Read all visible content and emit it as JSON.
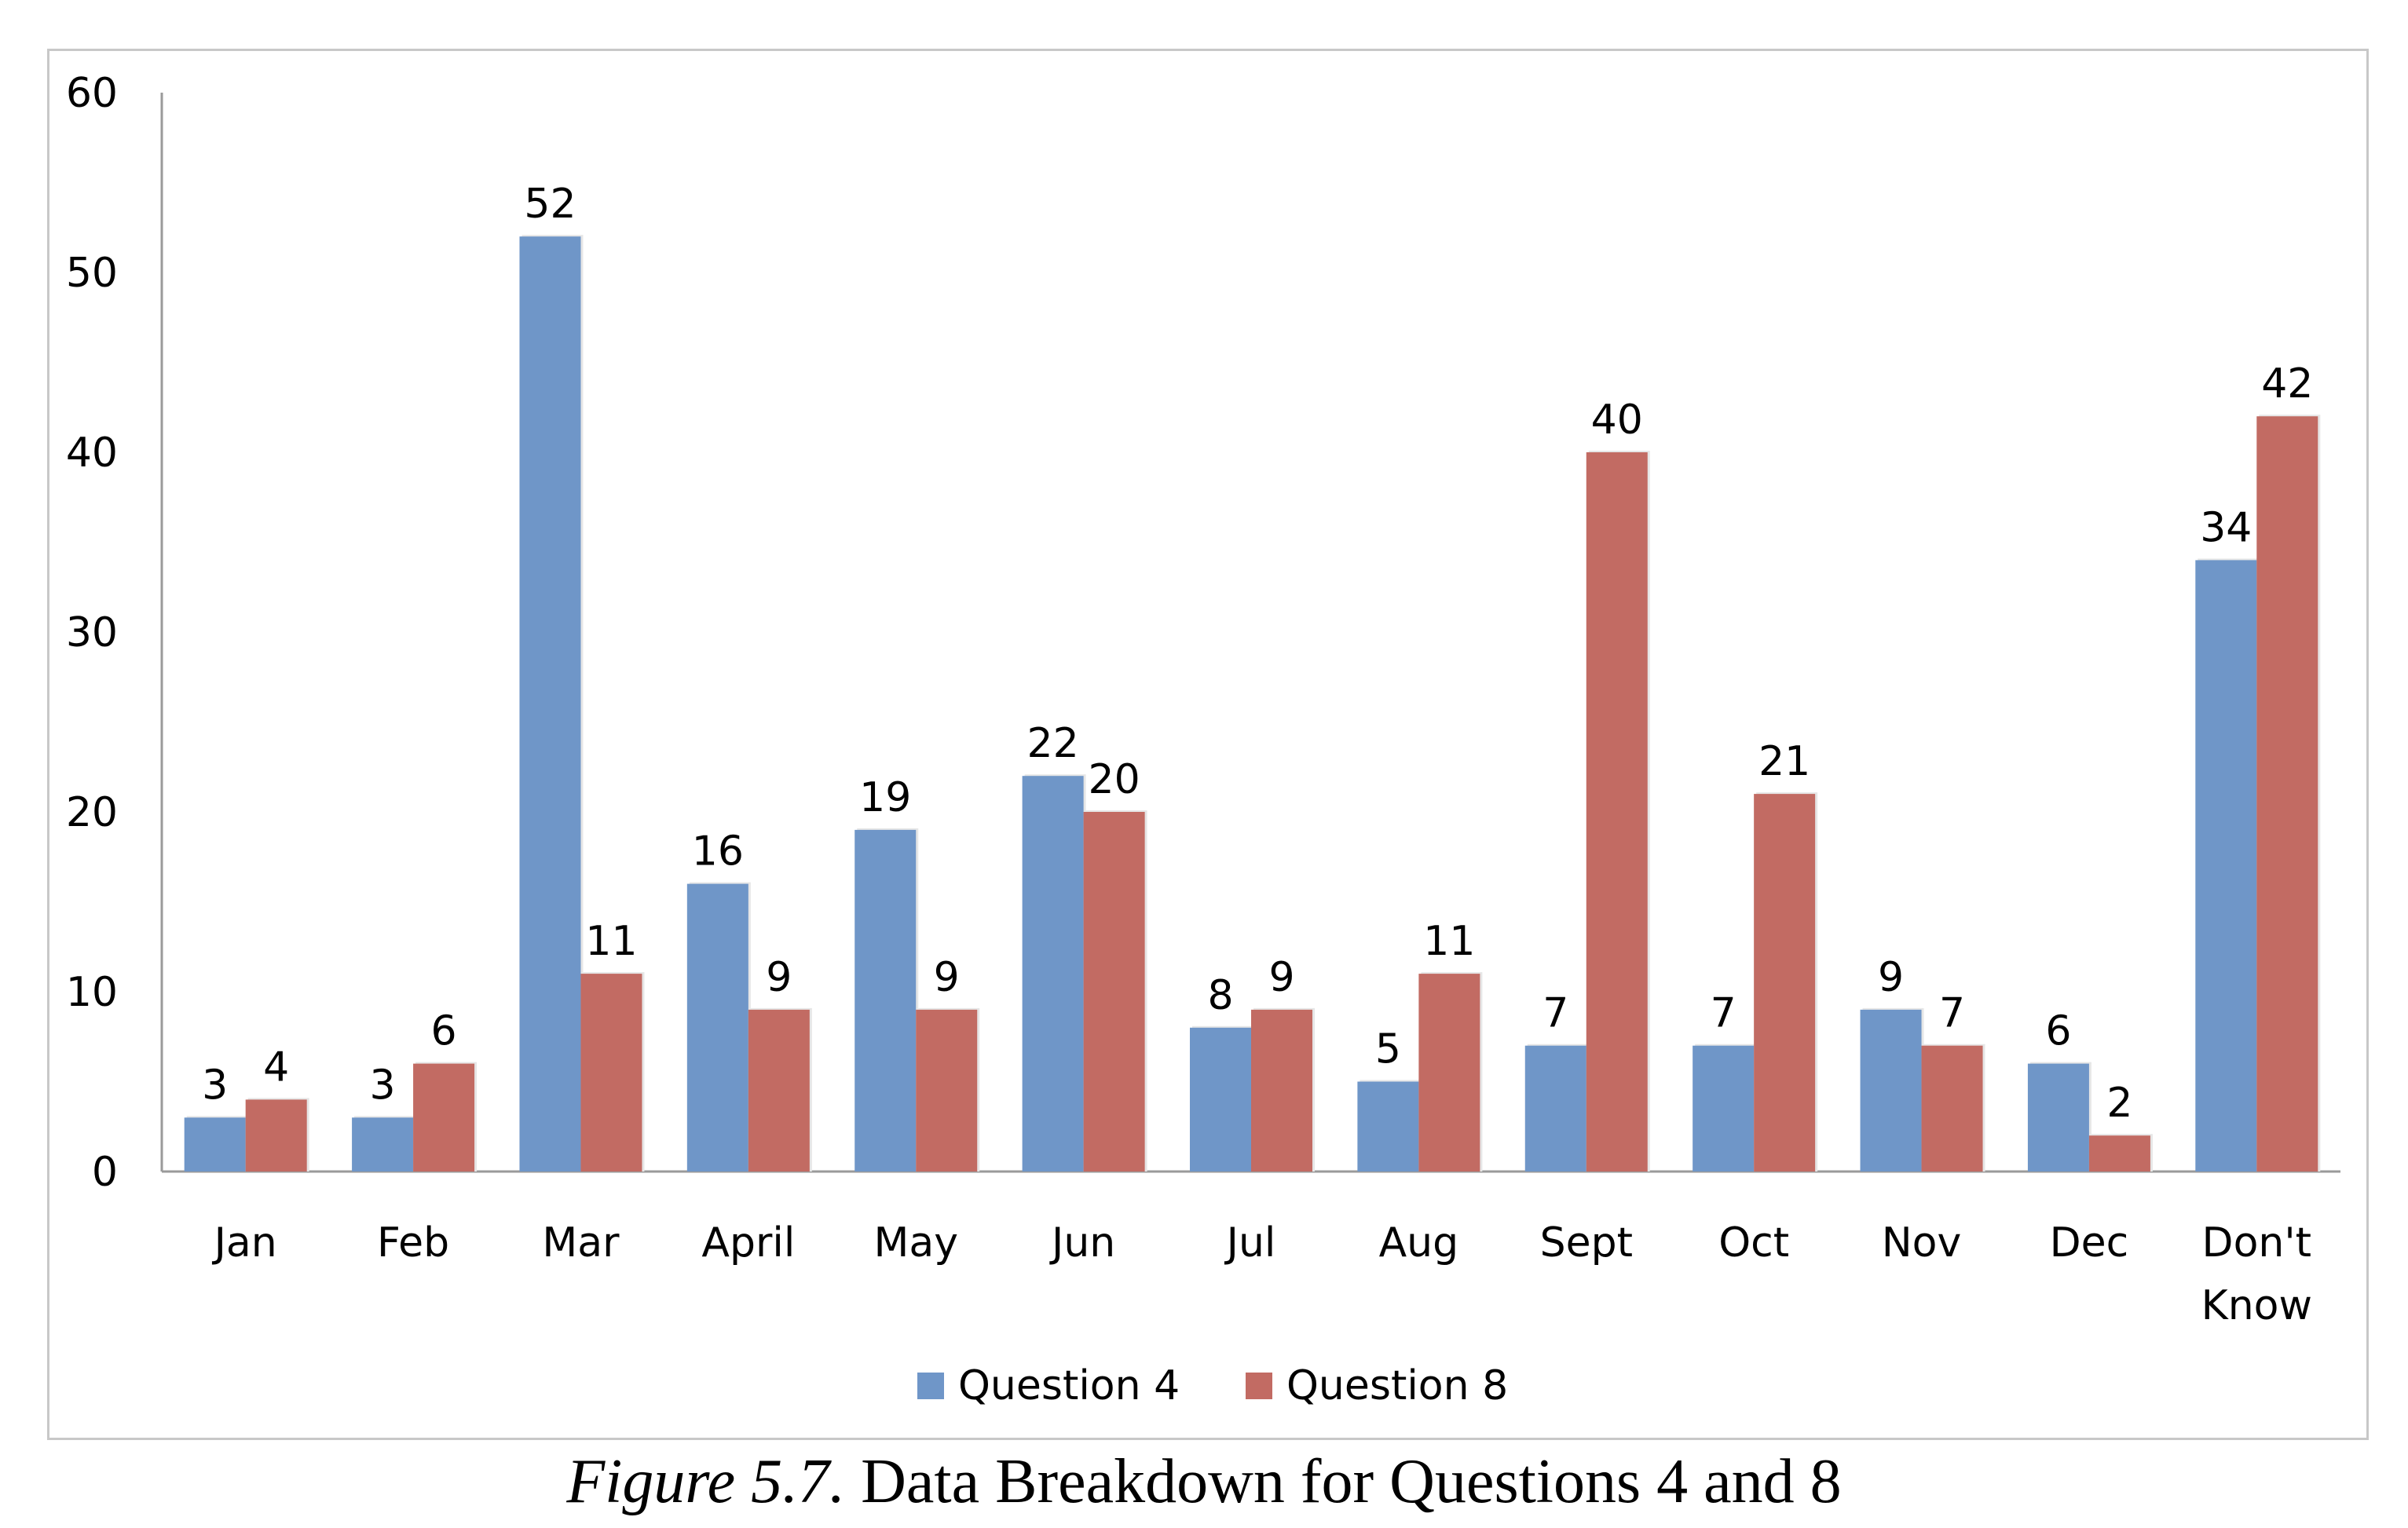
{
  "chart_data": {
    "type": "bar",
    "categories": [
      "Jan",
      "Feb",
      "Mar",
      "April",
      "May",
      "Jun",
      "Jul",
      "Aug",
      "Sept",
      "Oct",
      "Nov",
      "Dec",
      "Don't Know"
    ],
    "series": [
      {
        "name": "Question 4",
        "color": "#6f96c8",
        "values": [
          3,
          3,
          52,
          16,
          19,
          22,
          8,
          5,
          7,
          7,
          9,
          6,
          34
        ]
      },
      {
        "name": "Question 8",
        "color": "#c26b63",
        "values": [
          4,
          6,
          11,
          9,
          9,
          20,
          9,
          11,
          40,
          21,
          7,
          2,
          42
        ]
      }
    ],
    "ylim": [
      0,
      60
    ],
    "yticks": [
      "0",
      "10",
      "20",
      "30",
      "40",
      "50",
      "60"
    ],
    "grid": false,
    "legend_position": "bottom"
  },
  "caption": {
    "figure_label": "Figure 5.7.",
    "text": " Data Breakdown for Questions 4 and 8"
  }
}
